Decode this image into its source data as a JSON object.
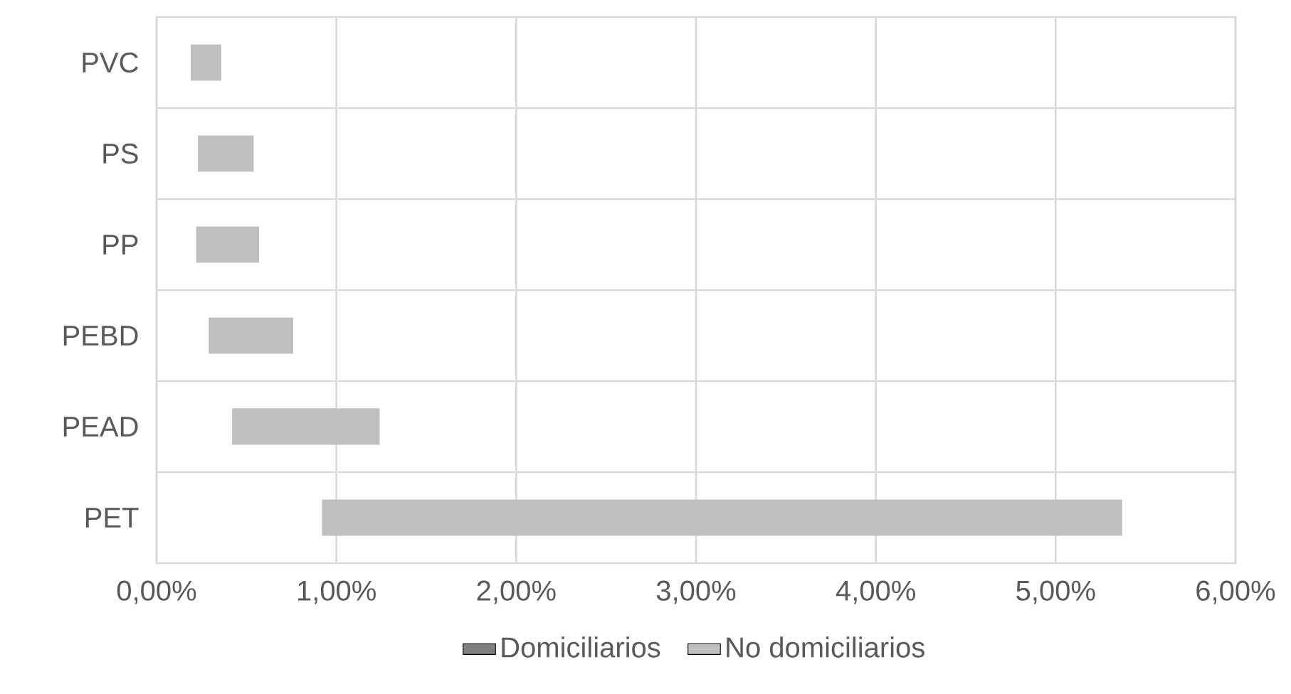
{
  "chart_data": {
    "type": "bar",
    "orientation": "horizontal",
    "categories": [
      "PVC",
      "PS",
      "PP",
      "PEBD",
      "PEAD",
      "PET"
    ],
    "series": [
      {
        "name": "Domiciliarios",
        "color": "#7f7f7f",
        "values": [
          null,
          null,
          null,
          null,
          null,
          null
        ]
      },
      {
        "name": "No domiciliarios",
        "color": "#bfbfbf",
        "values": [
          0.17,
          0.31,
          0.35,
          0.47,
          0.82,
          4.45
        ],
        "base": [
          0.19,
          0.23,
          0.22,
          0.29,
          0.42,
          0.92
        ]
      }
    ],
    "xlim": [
      0,
      6
    ],
    "xticks": [
      {
        "value": 0,
        "label": "0,00%"
      },
      {
        "value": 1,
        "label": "1,00%"
      },
      {
        "value": 2,
        "label": "2,00%"
      },
      {
        "value": 3,
        "label": "3,00%"
      },
      {
        "value": 4,
        "label": "4,00%"
      },
      {
        "value": 5,
        "label": "5,00%"
      },
      {
        "value": 6,
        "label": "6,00%"
      }
    ],
    "grid": true,
    "legend": "bottom"
  }
}
